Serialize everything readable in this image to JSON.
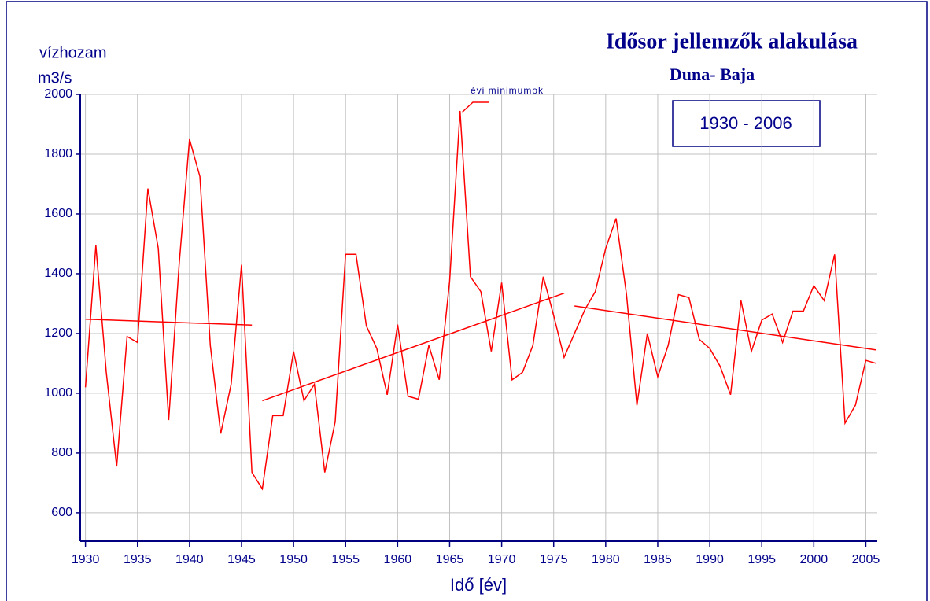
{
  "chart_data": {
    "type": "line",
    "title": "Idősor jellemzők alakulása",
    "subtitle": "Duna- Baja",
    "period": "1930 - 2006",
    "y_label": "vízhozam",
    "y_unit": "m3/s",
    "x_label": "Idő [év]",
    "x": [
      1930,
      1931,
      1932,
      1933,
      1934,
      1935,
      1936,
      1937,
      1938,
      1939,
      1940,
      1941,
      1942,
      1943,
      1944,
      1945,
      1946,
      1947,
      1948,
      1949,
      1950,
      1951,
      1952,
      1953,
      1954,
      1955,
      1956,
      1957,
      1958,
      1959,
      1960,
      1961,
      1962,
      1963,
      1964,
      1965,
      1966,
      1967,
      1968,
      1969,
      1970,
      1971,
      1972,
      1973,
      1974,
      1975,
      1976,
      1977,
      1978,
      1979,
      1980,
      1981,
      1982,
      1983,
      1984,
      1985,
      1986,
      1987,
      1988,
      1989,
      1990,
      1991,
      1992,
      1993,
      1994,
      1995,
      1996,
      1997,
      1998,
      1999,
      2000,
      2001,
      2002,
      2003,
      2004,
      2005,
      2006
    ],
    "series": [
      {
        "name": "évi minimumok",
        "color": "#ff0000",
        "values": [
          1020,
          1495,
          1070,
          755,
          1190,
          1170,
          1685,
          1485,
          910,
          1430,
          1850,
          1725,
          1160,
          865,
          1030,
          1430,
          735,
          680,
          925,
          925,
          1140,
          975,
          1030,
          735,
          905,
          1465,
          1465,
          1225,
          1150,
          995,
          1230,
          990,
          980,
          1160,
          1045,
          1375,
          1945,
          1390,
          1340,
          1140,
          1370,
          1045,
          1070,
          1160,
          1390,
          1260,
          1120,
          1200,
          1280,
          1340,
          1485,
          1585,
          1330,
          960,
          1200,
          1055,
          1160,
          1330,
          1320,
          1180,
          1150,
          1090,
          995,
          1310,
          1140,
          1245,
          1265,
          1170,
          1275,
          1275,
          1360,
          1310,
          1465,
          900,
          960,
          1110,
          1100
        ]
      }
    ],
    "trends": [
      {
        "color": "#ff0000",
        "x": [
          1930,
          1946
        ],
        "values": [
          1248,
          1228
        ]
      },
      {
        "color": "#ff0000",
        "x": [
          1947,
          1976
        ],
        "values": [
          975,
          1335
        ]
      },
      {
        "color": "#ff0000",
        "x": [
          1977,
          2006
        ],
        "values": [
          1292,
          1145
        ]
      }
    ],
    "xlim": [
      1929.5,
      2006.1
    ],
    "xticks": [
      1930,
      1935,
      1940,
      1945,
      1950,
      1955,
      1960,
      1965,
      1970,
      1975,
      1980,
      1985,
      1990,
      1995,
      2000,
      2005
    ],
    "ylim": [
      505,
      2000
    ],
    "yticks": [
      600,
      800,
      1000,
      1200,
      1400,
      1600,
      1800,
      2000
    ],
    "grid": true
  }
}
